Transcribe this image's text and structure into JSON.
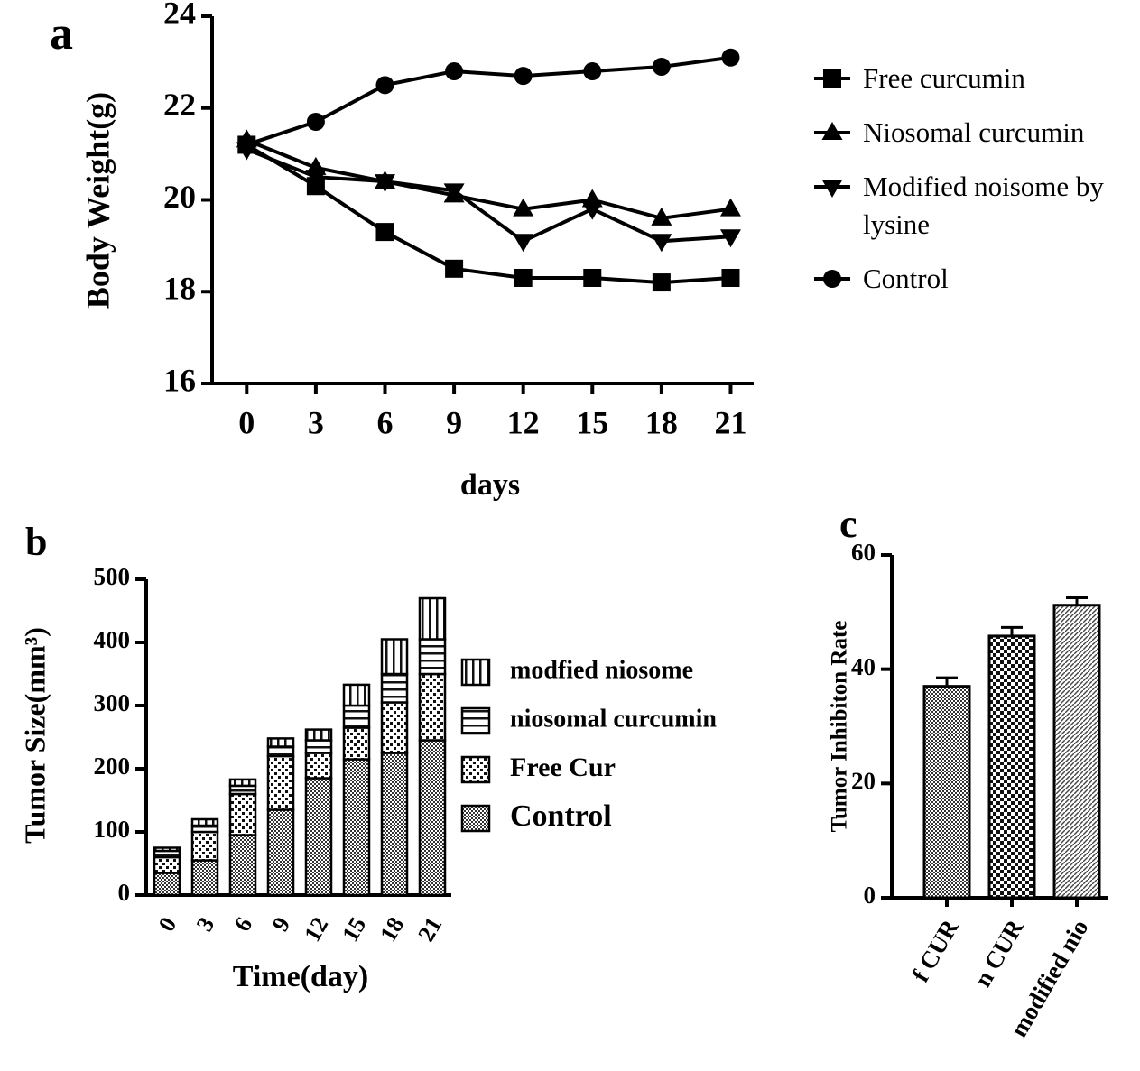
{
  "chart_data": [
    {
      "type": "line",
      "panel_label": "a",
      "x_label": "days",
      "y_label": "Body  Weight(g)",
      "x": [
        0,
        3,
        6,
        9,
        12,
        15,
        18,
        21
      ],
      "xlim": [
        -1.5,
        22
      ],
      "xticks": [
        0,
        3,
        6,
        9,
        12,
        15,
        18,
        21
      ],
      "ylim": [
        16,
        24
      ],
      "yticks": [
        16,
        18,
        20,
        22,
        24
      ],
      "legend": "right",
      "series": [
        {
          "name": "Free curcumin",
          "color": "#000000",
          "marker": "square",
          "values": [
            21.2,
            20.3,
            19.3,
            18.5,
            18.3,
            18.3,
            18.2,
            18.3
          ]
        },
        {
          "name": "Niosomal curcumin",
          "color": "#000000",
          "marker": "triangle-up",
          "values": [
            21.3,
            20.7,
            20.4,
            20.1,
            19.8,
            20.0,
            19.6,
            19.8
          ]
        },
        {
          "name": "Modified noisome by lysine",
          "color": "#000000",
          "marker": "triangle-down",
          "values": [
            21.1,
            20.5,
            20.4,
            20.2,
            19.1,
            19.8,
            19.1,
            19.2
          ]
        },
        {
          "name": "Control",
          "color": "#000000",
          "marker": "circle",
          "values": [
            21.2,
            21.7,
            22.5,
            22.8,
            22.7,
            22.8,
            22.9,
            23.1
          ]
        }
      ]
    },
    {
      "type": "stacked-bar",
      "panel_label": "b",
      "x_label": "Time(day)",
      "y_label": "Tumor Size(mm³)",
      "categories": [
        "0",
        "3",
        "6",
        "9",
        "12",
        "15",
        "18",
        "21"
      ],
      "ylim": [
        0,
        500
      ],
      "yticks": [
        0,
        100,
        200,
        300,
        400,
        500
      ],
      "legend": "right",
      "series": [
        {
          "name": "Control",
          "color": "#000000",
          "pattern": "fine-checker",
          "values": [
            35,
            55,
            95,
            135,
            185,
            215,
            225,
            245
          ]
        },
        {
          "name": "Free Cur",
          "color": "#000000",
          "pattern": "dots",
          "values": [
            25,
            45,
            65,
            85,
            40,
            50,
            80,
            105
          ]
        },
        {
          "name": "niosomal curcumin",
          "color": "#000000",
          "pattern": "hstripes",
          "values": [
            10,
            10,
            13,
            15,
            20,
            35,
            45,
            55
          ]
        },
        {
          "name": "modfied niosome",
          "color": "#000000",
          "pattern": "vstripes",
          "values": [
            5,
            10,
            10,
            13,
            17,
            33,
            55,
            65
          ]
        }
      ]
    },
    {
      "type": "bar",
      "panel_label": "c",
      "y_label": "Tumor Inhibiton Rate",
      "categories": [
        "f CUR",
        "n CUR",
        "modified nio"
      ],
      "values": [
        37,
        45.8,
        51.2
      ],
      "errors": [
        1.5,
        1.5,
        1.3
      ],
      "patterns": [
        "fine-checker",
        "checker",
        "diag"
      ],
      "color": "#000000",
      "ylim": [
        0,
        60
      ],
      "yticks": [
        0,
        20,
        40,
        60
      ]
    }
  ]
}
